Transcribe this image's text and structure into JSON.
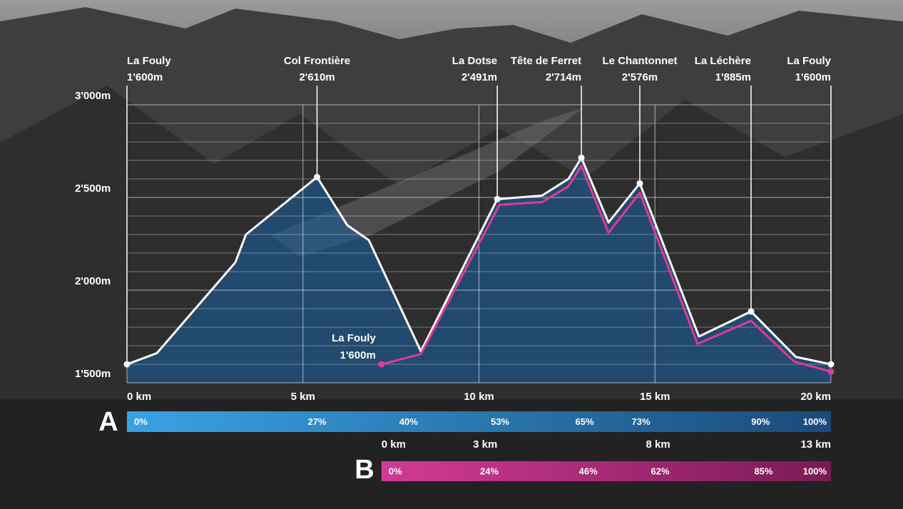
{
  "chart_data": {
    "type": "line",
    "xlim": [
      0,
      20
    ],
    "xticks": [
      {
        "value": 0,
        "label": "0 km"
      },
      {
        "value": 5,
        "label": "5 km"
      },
      {
        "value": 10,
        "label": "10 km"
      },
      {
        "value": 15,
        "label": "15 km"
      },
      {
        "value": 20,
        "label": "20 km"
      }
    ],
    "ylim": [
      1500,
      3000
    ],
    "yticks": [
      {
        "value": 1500,
        "label": "1'500m"
      },
      {
        "value": 2000,
        "label": "2'000m"
      },
      {
        "value": 2500,
        "label": "2'500m"
      },
      {
        "value": 3000,
        "label": "3'000m"
      }
    ],
    "minor_yticks": [
      1600,
      1700,
      1800,
      1900,
      2100,
      2200,
      2300,
      2400,
      2600,
      2700,
      2800,
      2900
    ],
    "grid": true,
    "series": [
      {
        "name": "A",
        "color": "#ffffff",
        "fill": "rgba(28,92,150,0.62)",
        "x": [
          0,
          0.85,
          3.08,
          3.38,
          5.4,
          6.26,
          6.87,
          8.35,
          10.52,
          11.79,
          12.54,
          12.91,
          13.68,
          14.57,
          16.25,
          17.73,
          19.0,
          20
        ],
        "values": [
          1600,
          1660,
          2150,
          2300,
          2610,
          2350,
          2270,
          1670,
          2491,
          2510,
          2600,
          2714,
          2365,
          2576,
          1750,
          1885,
          1640,
          1600
        ]
      },
      {
        "name": "B",
        "color": "#e0399a",
        "x": [
          7.23,
          8.35,
          10.58,
          11.79,
          12.54,
          12.91,
          13.68,
          14.57,
          16.21,
          17.73,
          18.95,
          20
        ],
        "values": [
          1600,
          1655,
          2460,
          2475,
          2560,
          2670,
          2310,
          2525,
          1710,
          1835,
          1615,
          1560
        ]
      }
    ],
    "annotations": [
      {
        "text": "La Fouly",
        "elevation": {
          "value": 1600,
          "label": "1'600m"
        },
        "x": 0,
        "anchor": "start"
      },
      {
        "text": "Col Frontière",
        "elevation": {
          "value": 2610,
          "label": "2'610m"
        },
        "x": 5.4,
        "anchor": "middle"
      },
      {
        "text": "La Dotse",
        "elevation": {
          "value": 2491,
          "label": "2'491m"
        },
        "x": 10.52,
        "anchor": "end"
      },
      {
        "text": "Tête de Ferret",
        "elevation": {
          "value": 2714,
          "label": "2'714m"
        },
        "x": 12.91,
        "anchor": "end"
      },
      {
        "text": "Le Chantonnet",
        "elevation": {
          "value": 2576,
          "label": "2'576m"
        },
        "x": 14.57,
        "anchor": "middle"
      },
      {
        "text": "La Léchère",
        "elevation": {
          "value": 1885,
          "label": "1'885m"
        },
        "x": 17.73,
        "anchor": "end"
      },
      {
        "text": "La Fouly",
        "elevation": {
          "value": 1600,
          "label": "1'600m"
        },
        "x": 20,
        "anchor": "end"
      }
    ],
    "b_label": {
      "text": "La Fouly",
      "elevation": {
        "value": 1600,
        "label": "1'600m"
      },
      "x": 7.23
    },
    "progress": [
      {
        "colors": [
          "#3aa3e3",
          "#1a4a7a"
        ],
        "values": [
          0,
          27,
          40,
          53,
          65,
          73,
          90,
          100
        ],
        "value_labels": [
          "0%",
          "27%",
          "40%",
          "53%",
          "65%",
          "73%",
          "90%",
          "100%"
        ]
      },
      {
        "colors": [
          "#d23a95",
          "#7a1a55"
        ],
        "xlim": [
          0,
          13
        ],
        "xticks": [
          {
            "value": 0,
            "label": "0 km"
          },
          {
            "value": 3,
            "label": "3 km"
          },
          {
            "value": 8,
            "label": "8 km"
          },
          {
            "value": 13,
            "label": "13 km"
          }
        ],
        "values": [
          0,
          24,
          46,
          62,
          85,
          100
        ],
        "value_labels": [
          "0%",
          "24%",
          "46%",
          "62%",
          "85%",
          "100%"
        ]
      }
    ]
  }
}
